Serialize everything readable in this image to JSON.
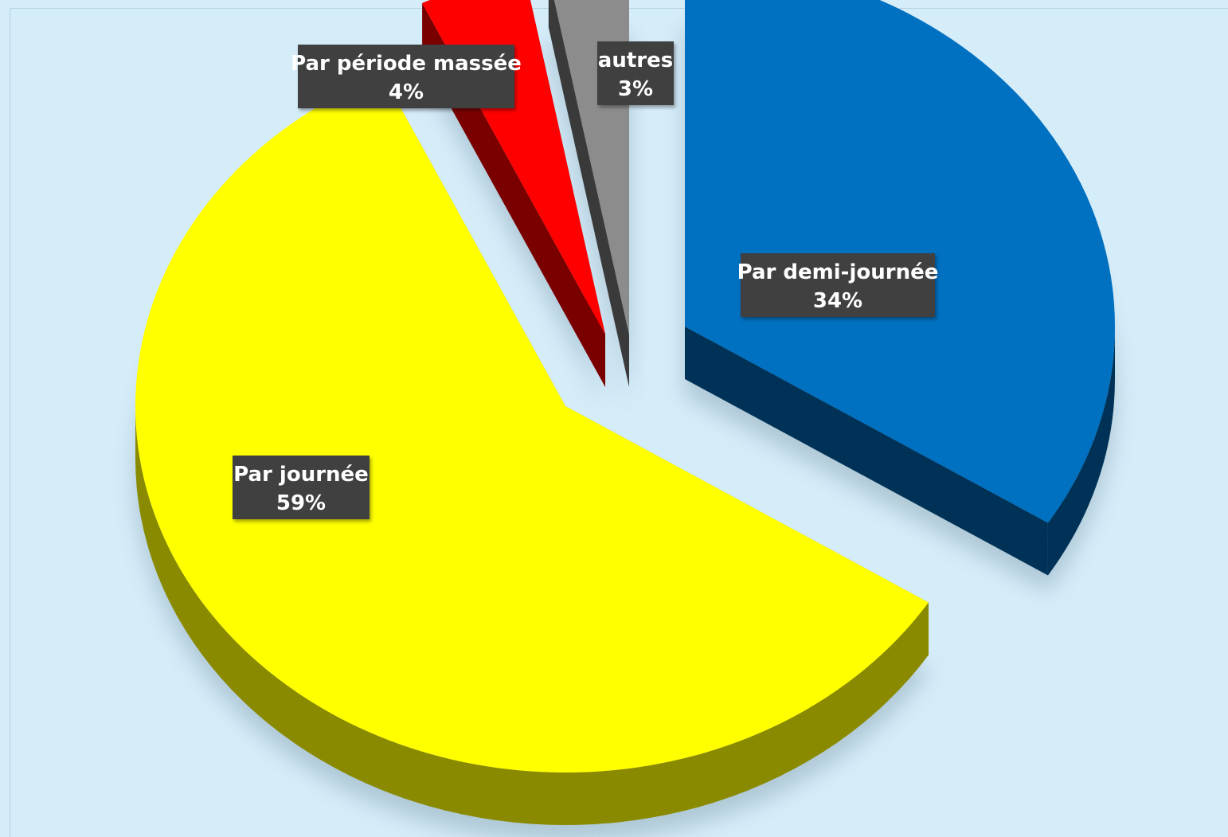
{
  "chart_data": {
    "type": "pie",
    "title": "",
    "legend": "none",
    "slices": [
      {
        "label": "Par demi-journée",
        "value": 34,
        "value_label": "34%",
        "color": "#0070c0",
        "side_color": "#003258"
      },
      {
        "label": "Par journée",
        "value": 59,
        "value_label": "59%",
        "color": "#ffff00",
        "side_color": "#8a8a00"
      },
      {
        "label": "Par période massée",
        "value": 4,
        "value_label": "4%",
        "color": "#ff0000",
        "side_color": "#7a0000"
      },
      {
        "label": "autres",
        "value": 3,
        "value_label": "3%",
        "color": "#8c8c8c",
        "side_color": "#3a3a3a"
      }
    ],
    "label_box_color": "#404040"
  }
}
